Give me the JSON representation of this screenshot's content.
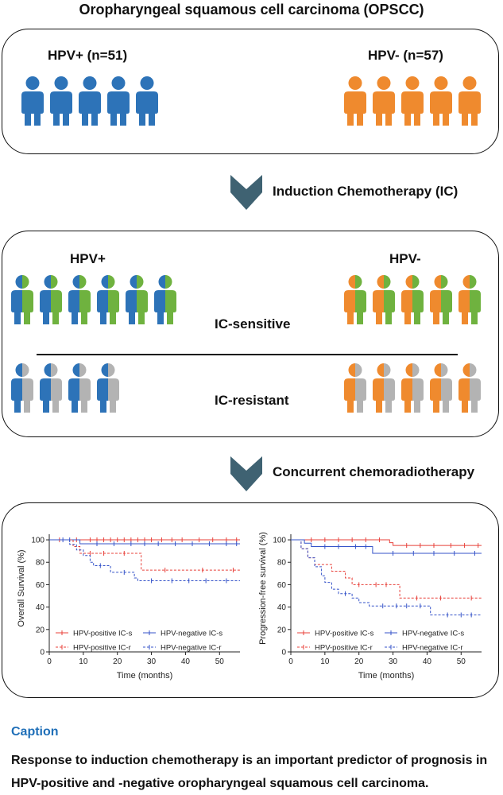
{
  "title": "Oropharyngeal squamous cell carcinoma (OPSCC)",
  "colors": {
    "hpv_pos": "#2d73b8",
    "hpv_neg": "#ef8a2e",
    "sensitive": "#6fb23f",
    "resistant": "#b3b3b3",
    "arrow": "#3f6272",
    "km_pos": "#e8403a",
    "km_neg": "#3553c9",
    "caption": "#1f6fb8"
  },
  "box1": {
    "hpv_pos_label": "HPV+ (n=51)",
    "hpv_neg_label": "HPV- (n=57)"
  },
  "step1": {
    "label": "Induction Chemotherapy (IC)",
    "icon": "chevron-down-icon"
  },
  "box2": {
    "hpv_pos_label": "HPV+",
    "hpv_neg_label": "HPV-",
    "sensitive_label": "IC-sensitive",
    "resistant_label": "IC-resistant"
  },
  "step2": {
    "label": "Concurrent chemoradiotherapy",
    "icon": "chevron-down-icon"
  },
  "chart_data": [
    {
      "type": "line",
      "ylabel": "Overall Survival (%)",
      "xlabel": "Time (months)",
      "xlim": [
        0,
        56
      ],
      "ylim": [
        0,
        105
      ],
      "xticks": [
        "0",
        "10",
        "20",
        "30",
        "40",
        "50"
      ],
      "yticks": [
        "0",
        "20",
        "40",
        "60",
        "80",
        "100"
      ],
      "legend": [
        "HPV-positive IC-s",
        "HPV-negative IC-s",
        "HPV-positive IC-r",
        "HPV-negative IC-r"
      ],
      "series": [
        {
          "name": "HPV-positive IC-s",
          "style": "solid",
          "color": "#e8403a",
          "steps": [
            [
              0,
              100
            ],
            [
              56,
              100
            ]
          ],
          "censors": [
            3,
            8,
            12,
            14,
            16,
            18,
            20,
            22,
            24,
            26,
            28,
            30,
            33,
            36,
            39,
            44,
            48,
            52,
            55
          ]
        },
        {
          "name": "HPV-negative IC-s",
          "style": "solid",
          "color": "#3553c9",
          "steps": [
            [
              0,
              100
            ],
            [
              9,
              100
            ],
            [
              9,
              96.5
            ],
            [
              56,
              96.5
            ]
          ],
          "censors": [
            4,
            6,
            14,
            19,
            24,
            28,
            32,
            37,
            42,
            47,
            52,
            55
          ]
        },
        {
          "name": "HPV-positive IC-r",
          "style": "dashed",
          "color": "#e8403a",
          "steps": [
            [
              0,
              100
            ],
            [
              7,
              100
            ],
            [
              7,
              94
            ],
            [
              9,
              94
            ],
            [
              9,
              88
            ],
            [
              27,
              88
            ],
            [
              27,
              73
            ],
            [
              56,
              73
            ]
          ],
          "censors": [
            12,
            16,
            22,
            34,
            45,
            54
          ]
        },
        {
          "name": "HPV-negative IC-r",
          "style": "dashed",
          "color": "#3553c9",
          "steps": [
            [
              0,
              100
            ],
            [
              6,
              100
            ],
            [
              6,
              96
            ],
            [
              8,
              96
            ],
            [
              8,
              91
            ],
            [
              10,
              91
            ],
            [
              10,
              86
            ],
            [
              12,
              86
            ],
            [
              12,
              80
            ],
            [
              13,
              80
            ],
            [
              13,
              77
            ],
            [
              18,
              77
            ],
            [
              18,
              71
            ],
            [
              25,
              71
            ],
            [
              25,
              66
            ],
            [
              26,
              66
            ],
            [
              26,
              63.5
            ],
            [
              56,
              63.5
            ]
          ],
          "censors": [
            15,
            22,
            30,
            36,
            41,
            46,
            52
          ]
        }
      ]
    },
    {
      "type": "line",
      "ylabel": "Progression-free survival (%)",
      "xlabel": "Time (months)",
      "xlim": [
        0,
        56
      ],
      "ylim": [
        0,
        105
      ],
      "xticks": [
        "0",
        "10",
        "20",
        "30",
        "40",
        "50"
      ],
      "yticks": [
        "0",
        "20",
        "40",
        "60",
        "80",
        "100"
      ],
      "legend": [
        "HPV-positive IC-s",
        "HPV-negative IC-s",
        "HPV-positive IC-r",
        "HPV-negative IC-r"
      ],
      "series": [
        {
          "name": "HPV-positive IC-s",
          "style": "solid",
          "color": "#e8403a",
          "steps": [
            [
              0,
              100
            ],
            [
              29,
              100
            ],
            [
              29,
              97.5
            ],
            [
              30,
              97.5
            ],
            [
              30,
              95
            ],
            [
              56,
              95
            ]
          ],
          "censors": [
            6,
            10,
            14,
            18,
            22,
            26,
            34,
            38,
            42,
            47,
            51,
            55
          ]
        },
        {
          "name": "HPV-negative IC-s",
          "style": "solid",
          "color": "#3553c9",
          "steps": [
            [
              0,
              100
            ],
            [
              4,
              100
            ],
            [
              4,
              97
            ],
            [
              6,
              97
            ],
            [
              6,
              94
            ],
            [
              24,
              94
            ],
            [
              24,
              88
            ],
            [
              56,
              88
            ]
          ],
          "censors": [
            10,
            14,
            19,
            22,
            30,
            36,
            42,
            48,
            54
          ]
        },
        {
          "name": "HPV-positive IC-r",
          "style": "dashed",
          "color": "#e8403a",
          "steps": [
            [
              0,
              100
            ],
            [
              3,
              100
            ],
            [
              3,
              92
            ],
            [
              5,
              92
            ],
            [
              5,
              84
            ],
            [
              7,
              84
            ],
            [
              7,
              78
            ],
            [
              12,
              78
            ],
            [
              12,
              72
            ],
            [
              16,
              72
            ],
            [
              16,
              66
            ],
            [
              18,
              66
            ],
            [
              18,
              60
            ],
            [
              32,
              60
            ],
            [
              32,
              48
            ],
            [
              56,
              48
            ]
          ],
          "censors": [
            20,
            25,
            28,
            37,
            44,
            53
          ]
        },
        {
          "name": "HPV-negative IC-r",
          "style": "dashed",
          "color": "#3553c9",
          "steps": [
            [
              0,
              100
            ],
            [
              3,
              100
            ],
            [
              3,
              92
            ],
            [
              5,
              92
            ],
            [
              5,
              84
            ],
            [
              7,
              84
            ],
            [
              7,
              76
            ],
            [
              9,
              76
            ],
            [
              9,
              68
            ],
            [
              10,
              68
            ],
            [
              10,
              62
            ],
            [
              12,
              62
            ],
            [
              12,
              56
            ],
            [
              14,
              56
            ],
            [
              14,
              52
            ],
            [
              18,
              52
            ],
            [
              18,
              48
            ],
            [
              20,
              48
            ],
            [
              20,
              44
            ],
            [
              23,
              44
            ],
            [
              23,
              41
            ],
            [
              41,
              41
            ],
            [
              41,
              33
            ],
            [
              56,
              33
            ]
          ],
          "censors": [
            16,
            27,
            31,
            34,
            38,
            46,
            50,
            53
          ]
        }
      ]
    }
  ],
  "caption": {
    "heading": "Caption",
    "text": "Response to induction chemotherapy is an important predictor of prognosis in HPV-positive and -negative oropharyngeal squamous cell carcinoma."
  }
}
